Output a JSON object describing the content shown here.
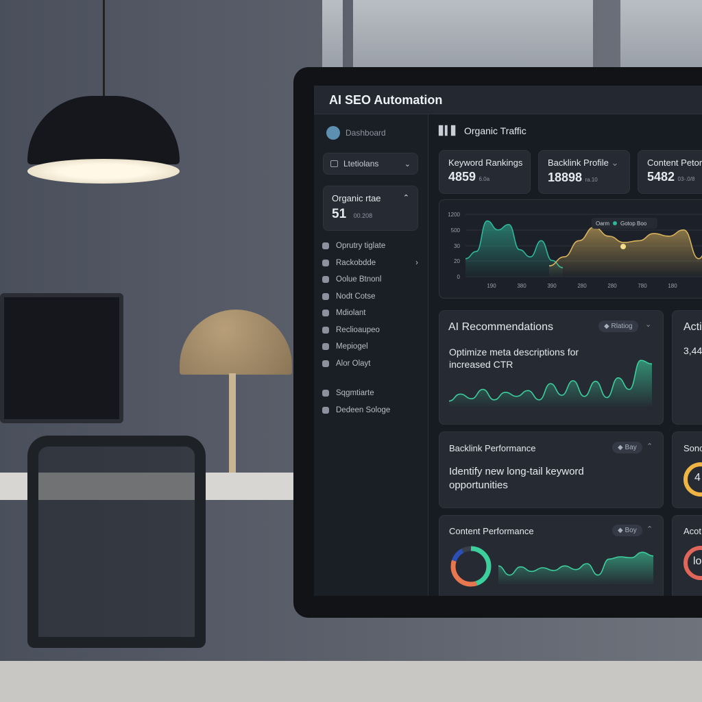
{
  "app_title": "AI SEO Automation",
  "sidebar": {
    "dashboard_label": "Dashboard",
    "dropdown_label": "Ltetiolans",
    "stat_card": {
      "label": "Organic rtae",
      "value": "51",
      "sub": "00.208"
    },
    "items": [
      {
        "label": "Oprutry tiglate",
        "icon": "puzzle-icon"
      },
      {
        "label": "Rackobdde",
        "icon": "link-icon",
        "has_chevron": true
      },
      {
        "label": "Oolue Btnonl",
        "icon": "document-icon"
      },
      {
        "label": "Nodt Cotse",
        "icon": "cloud-icon"
      },
      {
        "label": "Mdiolant",
        "icon": "pin-icon"
      },
      {
        "label": "Reclioaupeo",
        "icon": "square-icon"
      },
      {
        "label": "Mepiogel",
        "icon": "file-icon"
      },
      {
        "label": "Alor Olayt",
        "icon": "grid-icon"
      },
      {
        "label": "Sqgmtiarte",
        "icon": "globe-icon"
      },
      {
        "label": "Dedeen Sologe",
        "icon": "box-icon"
      }
    ]
  },
  "main": {
    "section_title": "Organic Traffic",
    "kpis": [
      {
        "label": "Keyword Rankings",
        "value": "4859",
        "sub": "6.0a"
      },
      {
        "label": "Backlink Profile",
        "value": "18898",
        "sub": "ra.10",
        "has_chevron": true
      },
      {
        "label": "Content Petor",
        "value": "5482",
        "sub": "03-.0/8"
      }
    ],
    "traffic_chart": {
      "legend_left": "Oarm",
      "legend_right": "Gotop Boo",
      "y_ticks": [
        "1200",
        "500",
        "30",
        "20",
        "0"
      ],
      "x_ticks": [
        "190",
        "380",
        "390",
        "280",
        "280",
        "780",
        "180"
      ],
      "series": [
        {
          "color": "#2fb79c",
          "values": [
            20,
            28,
            62,
            52,
            58,
            30,
            22,
            40,
            18,
            10
          ]
        },
        {
          "color": "#d9b25c",
          "values": [
            12,
            22,
            40,
            55,
            45,
            38,
            40,
            48,
            45,
            52,
            20,
            55
          ]
        }
      ]
    },
    "ai_recommendations": {
      "title": "AI Recommendations",
      "badge": "Rlatiog",
      "text": "Optimize meta descriptions for increased CTR",
      "spark": [
        10,
        22,
        14,
        30,
        12,
        25,
        18,
        28,
        12,
        40,
        20,
        45,
        18,
        44,
        16,
        50,
        30,
        80,
        74
      ]
    },
    "backlink_performance": {
      "title": "Backlink Performance",
      "badge": "Bay",
      "text": "Identify new long-tail keyword opportunities"
    },
    "content_performance": {
      "title": "Content Performance",
      "badge": "Boy",
      "donut": [
        {
          "value": 45,
          "color": "#3ccf9c"
        },
        {
          "value": 35,
          "color": "#e8764f"
        },
        {
          "value": 12,
          "color": "#2b4fb5"
        },
        {
          "value": 8,
          "color": "#3a404b"
        }
      ],
      "spark": [
        40,
        20,
        38,
        28,
        36,
        30,
        40,
        32,
        45,
        20,
        55,
        60,
        58,
        70,
        62
      ]
    },
    "right_column": {
      "card1_title": "Acti",
      "card1_value": "3,44",
      "card2_title": "Sonc",
      "card2_value": "4",
      "card3_title": "Acot",
      "card3_value": "lo"
    }
  },
  "colors": {
    "accent_teal": "#2fb79c",
    "accent_gold": "#d9b25c",
    "background": "#171b22"
  }
}
